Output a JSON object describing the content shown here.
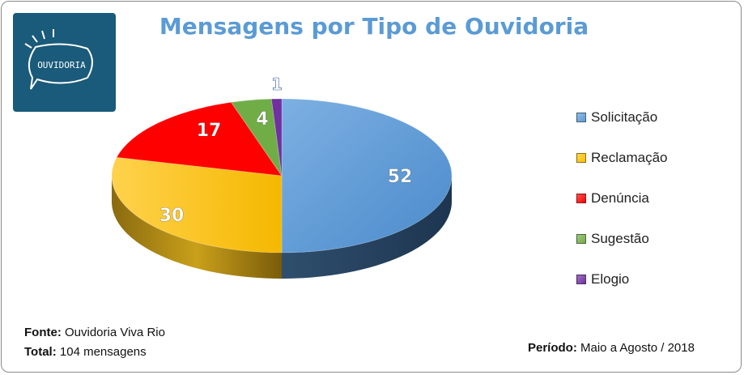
{
  "chart_data": {
    "type": "pie",
    "title": "Mensagens por Tipo de Ouvidoria",
    "categories": [
      "Solicitação",
      "Reclamação",
      "Denúncia",
      "Sugestão",
      "Elogio"
    ],
    "values": [
      52,
      30,
      17,
      4,
      1
    ],
    "colors": [
      "#5b9bd5",
      "#ffc000",
      "#ff0000",
      "#70ad47",
      "#7030a0"
    ],
    "legend_position": "right"
  },
  "logo": {
    "text": "OUVIDORIA",
    "icon": "speech-bubble-icon"
  },
  "footer": {
    "fonte_label": "Fonte:",
    "fonte_value": "Ouvidoria Viva Rio",
    "total_label": "Total:",
    "total_value": "104 mensagens",
    "periodo_label": "Período:",
    "periodo_value": "Maio a Agosto / 2018"
  }
}
